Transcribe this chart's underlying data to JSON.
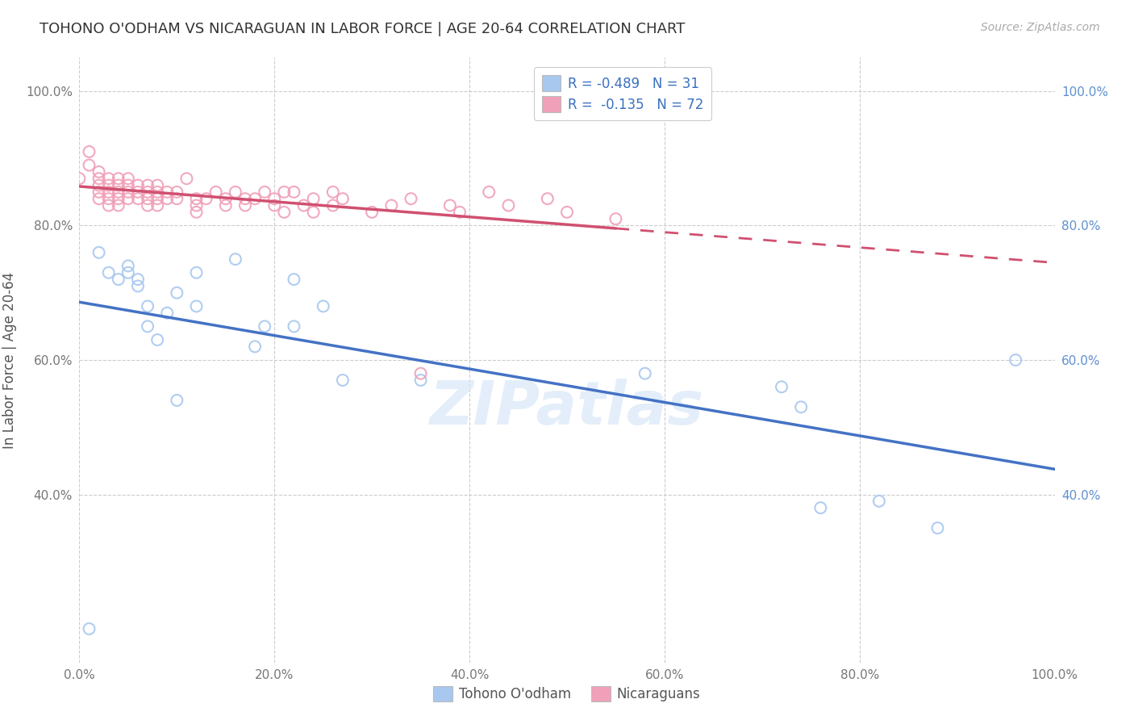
{
  "title": "TOHONO O'ODHAM VS NICARAGUAN IN LABOR FORCE | AGE 20-64 CORRELATION CHART",
  "source": "Source: ZipAtlas.com",
  "ylabel": "In Labor Force | Age 20-64",
  "xlim": [
    0.0,
    1.0
  ],
  "ylim": [
    0.15,
    1.05
  ],
  "xtick_positions": [
    0.0,
    0.2,
    0.4,
    0.6,
    0.8,
    1.0
  ],
  "xticklabels": [
    "0.0%",
    "20.0%",
    "40.0%",
    "60.0%",
    "80.0%",
    "100.0%"
  ],
  "ytick_positions": [
    0.4,
    0.6,
    0.8,
    1.0
  ],
  "yticklabels": [
    "40.0%",
    "60.0%",
    "80.0%",
    "100.0%"
  ],
  "legend_line1": "R = -0.489   N = 31",
  "legend_line2": "R =  -0.135   N = 72",
  "blue_scatter_color": "#A8C8F0",
  "pink_scatter_color": "#F0A0B8",
  "blue_line_color": "#4472C4",
  "pink_line_color": "#D05070",
  "blue_legend_color": "#A8C8F0",
  "pink_legend_color": "#F0A0B8",
  "right_tick_color": "#6090D0",
  "watermark": "ZIPatlas",
  "background_color": "#FFFFFF",
  "grid_color": "#CCCCCC",
  "tohono_x": [
    0.01,
    0.02,
    0.03,
    0.04,
    0.05,
    0.05,
    0.06,
    0.06,
    0.07,
    0.07,
    0.08,
    0.09,
    0.1,
    0.1,
    0.12,
    0.12,
    0.18,
    0.19,
    0.22,
    0.22,
    0.25,
    0.27,
    0.35,
    0.58,
    0.72,
    0.74,
    0.76,
    0.82,
    0.88,
    0.96,
    0.16
  ],
  "tohono_y": [
    0.2,
    0.76,
    0.73,
    0.72,
    0.73,
    0.74,
    0.72,
    0.71,
    0.68,
    0.65,
    0.63,
    0.67,
    0.7,
    0.54,
    0.73,
    0.68,
    0.62,
    0.65,
    0.72,
    0.65,
    0.68,
    0.57,
    0.57,
    0.58,
    0.56,
    0.53,
    0.38,
    0.39,
    0.35,
    0.6,
    0.75
  ],
  "nicaraguan_x": [
    0.0,
    0.01,
    0.01,
    0.02,
    0.02,
    0.02,
    0.02,
    0.02,
    0.03,
    0.03,
    0.03,
    0.03,
    0.03,
    0.04,
    0.04,
    0.04,
    0.04,
    0.04,
    0.05,
    0.05,
    0.05,
    0.05,
    0.06,
    0.06,
    0.06,
    0.07,
    0.07,
    0.07,
    0.07,
    0.08,
    0.08,
    0.08,
    0.08,
    0.09,
    0.09,
    0.1,
    0.1,
    0.11,
    0.12,
    0.12,
    0.12,
    0.13,
    0.14,
    0.15,
    0.15,
    0.16,
    0.17,
    0.17,
    0.18,
    0.19,
    0.2,
    0.2,
    0.21,
    0.21,
    0.22,
    0.23,
    0.24,
    0.24,
    0.26,
    0.26,
    0.27,
    0.3,
    0.32,
    0.34,
    0.35,
    0.38,
    0.39,
    0.42,
    0.44,
    0.48,
    0.5,
    0.55
  ],
  "nicaraguan_y": [
    0.87,
    0.91,
    0.89,
    0.87,
    0.86,
    0.84,
    0.85,
    0.88,
    0.85,
    0.87,
    0.86,
    0.84,
    0.83,
    0.87,
    0.86,
    0.84,
    0.83,
    0.85,
    0.86,
    0.85,
    0.87,
    0.84,
    0.85,
    0.84,
    0.86,
    0.85,
    0.86,
    0.84,
    0.83,
    0.86,
    0.85,
    0.84,
    0.83,
    0.85,
    0.84,
    0.85,
    0.84,
    0.87,
    0.84,
    0.83,
    0.82,
    0.84,
    0.85,
    0.84,
    0.83,
    0.85,
    0.84,
    0.83,
    0.84,
    0.85,
    0.84,
    0.83,
    0.85,
    0.82,
    0.85,
    0.83,
    0.84,
    0.82,
    0.85,
    0.83,
    0.84,
    0.82,
    0.83,
    0.84,
    0.58,
    0.83,
    0.82,
    0.85,
    0.83,
    0.84,
    0.82,
    0.81
  ]
}
